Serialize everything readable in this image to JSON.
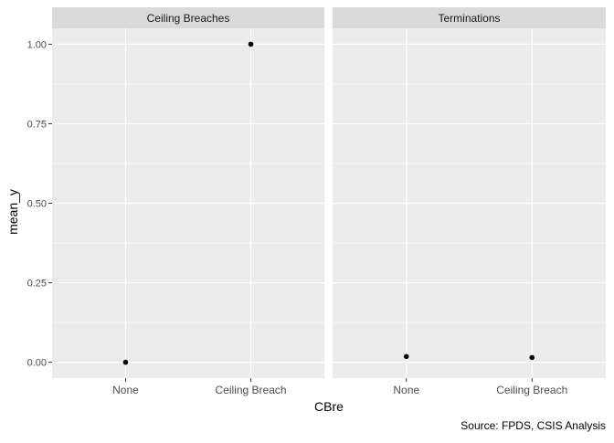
{
  "chart_data": {
    "type": "scatter",
    "ylabel": "mean_y",
    "xlabel": "CBre",
    "caption": "Source: FPDS, CSIS Analysis",
    "categories": [
      "None",
      "Ceiling Breach"
    ],
    "ylim": [
      -0.05,
      1.05
    ],
    "yticks": [
      0.0,
      0.25,
      0.5,
      0.75,
      1.0
    ],
    "ytick_labels": [
      "0.00",
      "0.25",
      "0.50",
      "0.75",
      "1.00"
    ],
    "grid": true,
    "facets": [
      {
        "label": "Ceiling Breaches",
        "values": [
          0.0,
          1.0
        ]
      },
      {
        "label": "Terminations",
        "values": [
          0.018,
          0.015
        ]
      }
    ],
    "colors": {
      "panel_bg": "#ebebeb",
      "strip_bg": "#d9d9d9",
      "grid": "#ffffff",
      "point": "#000000",
      "axis_text": "#4d4d4d",
      "title_text": "#000000",
      "strip_text": "#1a1a1a"
    }
  }
}
